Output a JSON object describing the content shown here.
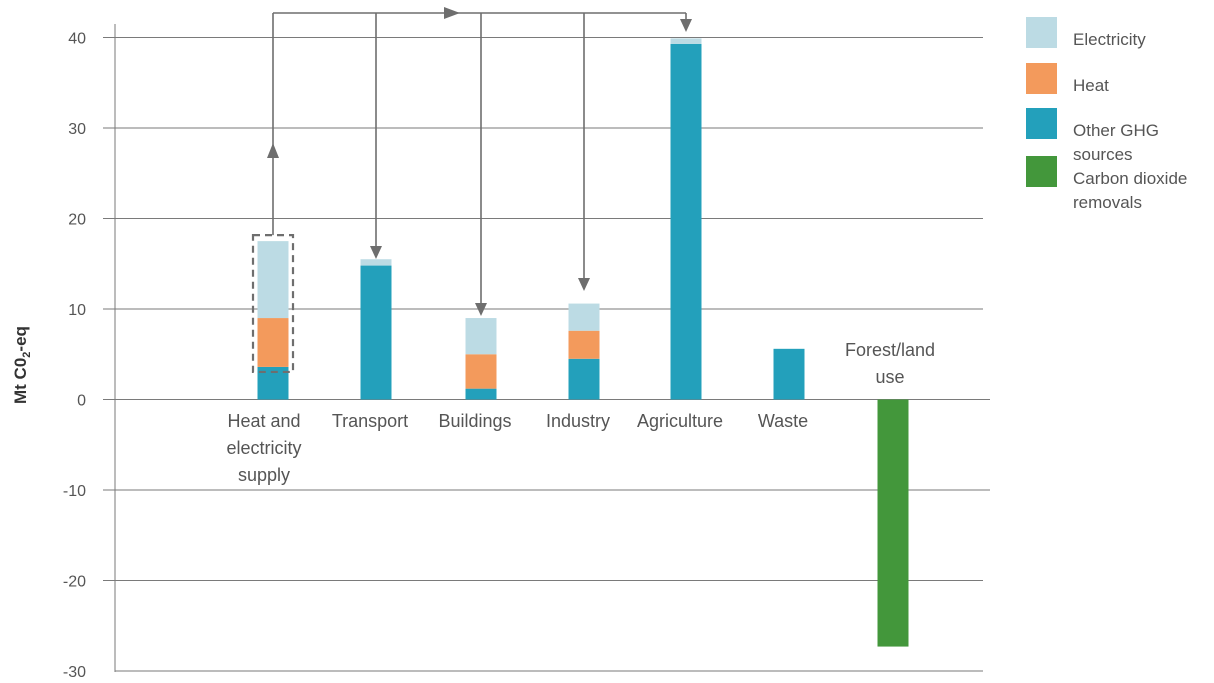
{
  "chart_data": {
    "type": "bar",
    "stacked": true,
    "categories": [
      "Heat and electricity supply",
      "Transport",
      "Buildings",
      "Industry",
      "Agriculture",
      "Waste",
      "Forest/land use"
    ],
    "category_lines": [
      [
        "Heat and",
        "electricity",
        "supply"
      ],
      [
        "Transport"
      ],
      [
        "Buildings"
      ],
      [
        "Industry"
      ],
      [
        "Agriculture"
      ],
      [
        "Waste"
      ],
      [
        "Forest/land",
        "use"
      ]
    ],
    "series": [
      {
        "name": "Other GHG sources",
        "color": "#23a0bb",
        "values": [
          3.6,
          14.8,
          1.2,
          4.5,
          39.3,
          5.6,
          0
        ]
      },
      {
        "name": "Heat",
        "color": "#f39a5c",
        "values": [
          5.4,
          0,
          3.8,
          3.1,
          0,
          0,
          0
        ]
      },
      {
        "name": "Electricity",
        "color": "#bcdbe4",
        "values": [
          8.5,
          0.7,
          4.0,
          3.0,
          0.6,
          0,
          0
        ]
      },
      {
        "name": "Carbon dioxide removals",
        "color": "#43973b",
        "values": [
          0,
          0,
          0,
          0,
          0,
          0,
          -27.3
        ]
      }
    ],
    "legend": [
      {
        "label_lines": [
          "Electricity"
        ],
        "color": "#bcdbe4"
      },
      {
        "label_lines": [
          "Heat"
        ],
        "color": "#f39a5c"
      },
      {
        "label_lines": [
          "Other GHG",
          "sources"
        ],
        "color": "#23a0bb"
      },
      {
        "label_lines": [
          "Carbon dioxide",
          "removals"
        ],
        "color": "#43973b"
      }
    ],
    "ylabel": "Mt C0",
    "ylabel_sub": "2",
    "ylabel_suffix": "-eq",
    "yticks": [
      40,
      30,
      20,
      10,
      0,
      -10,
      -20,
      -30
    ],
    "ylim": [
      -30,
      40
    ],
    "legend_position": "right",
    "grid": true
  }
}
